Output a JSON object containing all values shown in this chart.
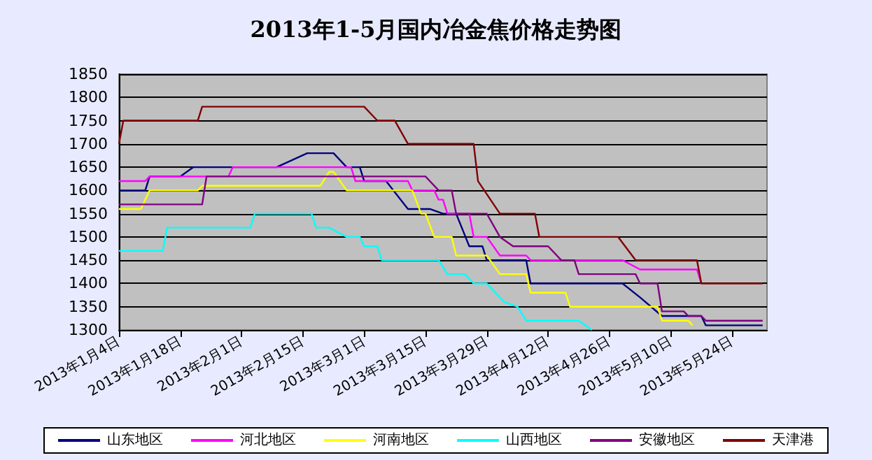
{
  "chart_data": {
    "type": "line",
    "title": "2013年1-5月国内冶金焦价格走势图",
    "xlim": [
      "2013-01-04",
      "2013-06-01"
    ],
    "xticks": [
      {
        "value": "2013-01-04",
        "label": "2013年1月4日"
      },
      {
        "value": "2013-01-18",
        "label": "2013年1月18日"
      },
      {
        "value": "2013-02-01",
        "label": "2013年2月1日"
      },
      {
        "value": "2013-02-15",
        "label": "2013年2月15日"
      },
      {
        "value": "2013-03-01",
        "label": "2013年3月1日"
      },
      {
        "value": "2013-03-15",
        "label": "2013年3月15日"
      },
      {
        "value": "2013-03-29",
        "label": "2013年3月29日"
      },
      {
        "value": "2013-04-12",
        "label": "2013年4月12日"
      },
      {
        "value": "2013-04-26",
        "label": "2013年4月26日"
      },
      {
        "value": "2013-05-10",
        "label": "2013年5月10日"
      },
      {
        "value": "2013-05-24",
        "label": "2013年5月24日"
      }
    ],
    "ylim": [
      1300,
      1850
    ],
    "yticks": [
      1300,
      1350,
      1400,
      1450,
      1500,
      1550,
      1600,
      1650,
      1700,
      1750,
      1800,
      1850
    ],
    "grid": "y",
    "legend": "bottom",
    "marker": "none",
    "line_style": "solid",
    "series": [
      {
        "name": "山东地区",
        "color": "#000080",
        "x": [
          "2013-01-04",
          "2013-01-10",
          "2013-01-11",
          "2013-01-18",
          "2013-01-21",
          "2013-02-09",
          "2013-02-16",
          "2013-02-22",
          "2013-02-25",
          "2013-02-28",
          "2013-03-01",
          "2013-03-06",
          "2013-03-11",
          "2013-03-16",
          "2013-03-19",
          "2013-03-22",
          "2013-03-25",
          "2013-03-28",
          "2013-03-29",
          "2013-04-07",
          "2013-04-08",
          "2013-04-29",
          "2013-05-03",
          "2013-05-08",
          "2013-05-17",
          "2013-05-18",
          "2013-05-31"
        ],
        "values": [
          1600,
          1600,
          1630,
          1630,
          1650,
          1650,
          1680,
          1680,
          1650,
          1650,
          1620,
          1620,
          1560,
          1560,
          1550,
          1550,
          1480,
          1480,
          1450,
          1450,
          1400,
          1400,
          1370,
          1330,
          1330,
          1310,
          1310
        ]
      },
      {
        "name": "河北地区",
        "color": "#ff00ff",
        "x": [
          "2013-01-04",
          "2013-01-10",
          "2013-01-11",
          "2013-01-29",
          "2013-01-30",
          "2013-02-26",
          "2013-02-27",
          "2013-03-11",
          "2013-03-12",
          "2013-03-17",
          "2013-03-18",
          "2013-03-19",
          "2013-03-20",
          "2013-03-25",
          "2013-03-26",
          "2013-03-29",
          "2013-04-01",
          "2013-04-07",
          "2013-04-08",
          "2013-04-29",
          "2013-05-03",
          "2013-05-16",
          "2013-05-17"
        ],
        "values": [
          1620,
          1620,
          1630,
          1630,
          1650,
          1650,
          1620,
          1620,
          1600,
          1600,
          1580,
          1580,
          1550,
          1550,
          1500,
          1500,
          1460,
          1460,
          1450,
          1450,
          1430,
          1430,
          1400
        ]
      },
      {
        "name": "河南地区",
        "color": "#ffff00",
        "x": [
          "2013-01-04",
          "2013-01-09",
          "2013-01-11",
          "2013-01-22",
          "2013-01-23",
          "2013-02-19",
          "2013-02-21",
          "2013-02-22",
          "2013-02-25",
          "2013-03-12",
          "2013-03-14",
          "2013-03-15",
          "2013-03-17",
          "2013-03-21",
          "2013-03-22",
          "2013-03-29",
          "2013-04-01",
          "2013-04-07",
          "2013-04-08",
          "2013-04-16",
          "2013-04-17",
          "2013-05-07",
          "2013-05-08",
          "2013-05-14",
          "2013-05-15"
        ],
        "values": [
          1560,
          1560,
          1600,
          1600,
          1610,
          1610,
          1640,
          1640,
          1600,
          1600,
          1550,
          1550,
          1500,
          1500,
          1460,
          1460,
          1420,
          1420,
          1380,
          1380,
          1350,
          1350,
          1320,
          1320,
          1310
        ]
      },
      {
        "name": "山西地区",
        "color": "#00ffff",
        "x": [
          "2013-01-04",
          "2013-01-14",
          "2013-01-15",
          "2013-02-03",
          "2013-02-04",
          "2013-02-17",
          "2013-02-18",
          "2013-02-21",
          "2013-02-25",
          "2013-02-28",
          "2013-03-01",
          "2013-03-04",
          "2013-03-05",
          "2013-03-18",
          "2013-03-20",
          "2013-03-24",
          "2013-03-26",
          "2013-03-29",
          "2013-04-02",
          "2013-04-05",
          "2013-04-07",
          "2013-04-19",
          "2013-04-22"
        ],
        "values": [
          1470,
          1470,
          1520,
          1520,
          1550,
          1550,
          1520,
          1520,
          1500,
          1500,
          1480,
          1480,
          1450,
          1450,
          1420,
          1420,
          1400,
          1400,
          1360,
          1350,
          1320,
          1320,
          1300
        ]
      },
      {
        "name": "安徽地区",
        "color": "#800080",
        "x": [
          "2013-01-04",
          "2013-01-23",
          "2013-01-24",
          "2013-03-15",
          "2013-03-18",
          "2013-03-21",
          "2013-03-22",
          "2013-03-29",
          "2013-04-01",
          "2013-04-04",
          "2013-04-12",
          "2013-04-15",
          "2013-04-18",
          "2013-04-19",
          "2013-05-02",
          "2013-05-03",
          "2013-05-07",
          "2013-05-08",
          "2013-05-13",
          "2013-05-14",
          "2013-05-17",
          "2013-05-18",
          "2013-05-31"
        ],
        "values": [
          1570,
          1570,
          1630,
          1630,
          1600,
          1600,
          1550,
          1550,
          1500,
          1480,
          1480,
          1450,
          1450,
          1420,
          1420,
          1400,
          1400,
          1340,
          1340,
          1330,
          1330,
          1320,
          1320
        ]
      },
      {
        "name": "天津港",
        "color": "#800000",
        "x": [
          "2013-01-04",
          "2013-01-05",
          "2013-01-22",
          "2013-01-23",
          "2013-03-01",
          "2013-03-04",
          "2013-03-08",
          "2013-03-11",
          "2013-03-26",
          "2013-03-27",
          "2013-04-01",
          "2013-04-09",
          "2013-04-10",
          "2013-04-28",
          "2013-05-02",
          "2013-05-16",
          "2013-05-17",
          "2013-05-31"
        ],
        "values": [
          1700,
          1750,
          1750,
          1780,
          1780,
          1750,
          1750,
          1700,
          1700,
          1620,
          1550,
          1550,
          1500,
          1500,
          1450,
          1450,
          1400,
          1400
        ]
      }
    ]
  }
}
